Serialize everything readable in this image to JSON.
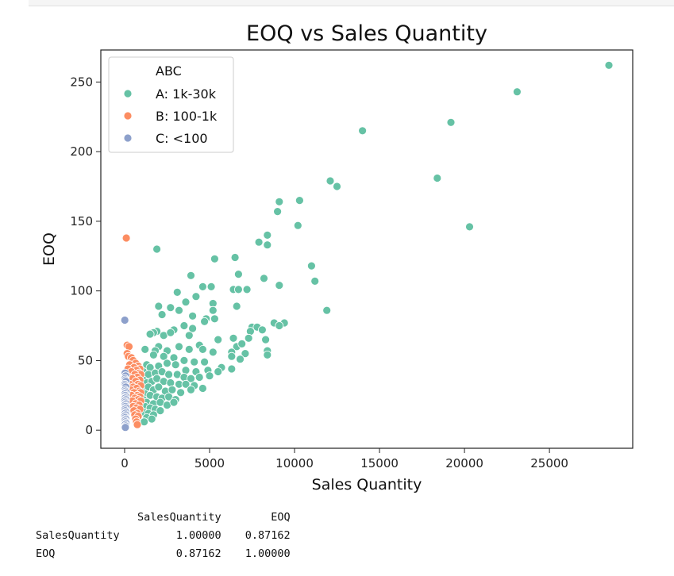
{
  "chart_data": {
    "type": "scatter",
    "title": "EOQ vs Sales Quantity",
    "xlabel": "Sales Quantity",
    "ylabel": "EOQ",
    "xlim": [
      -1400,
      29900
    ],
    "ylim": [
      -13,
      273
    ],
    "xticks": [
      0,
      5000,
      10000,
      15000,
      20000,
      25000
    ],
    "yticks": [
      0,
      50,
      100,
      150,
      200,
      250
    ],
    "grid": false,
    "legend": {
      "title": "ABC",
      "placement": "top-left"
    },
    "series": [
      {
        "name": "A: 1k-30k",
        "color": "#66c2a5",
        "points": [
          [
            28500,
            262
          ],
          [
            23100,
            243
          ],
          [
            19200,
            221
          ],
          [
            14000,
            215
          ],
          [
            18400,
            181
          ],
          [
            12100,
            179
          ],
          [
            12500,
            175
          ],
          [
            20300,
            146
          ],
          [
            10300,
            165
          ],
          [
            9100,
            164
          ],
          [
            9000,
            157
          ],
          [
            10200,
            147
          ],
          [
            8400,
            140
          ],
          [
            7900,
            135
          ],
          [
            8400,
            133
          ],
          [
            1900,
            130
          ],
          [
            6500,
            124
          ],
          [
            5300,
            123
          ],
          [
            11000,
            118
          ],
          [
            3900,
            111
          ],
          [
            6700,
            112
          ],
          [
            8200,
            109
          ],
          [
            11200,
            107
          ],
          [
            9100,
            104
          ],
          [
            4600,
            103
          ],
          [
            5100,
            103
          ],
          [
            6400,
            101
          ],
          [
            6700,
            101
          ],
          [
            7200,
            101
          ],
          [
            3100,
            99
          ],
          [
            4200,
            96
          ],
          [
            11900,
            86
          ],
          [
            5200,
            91
          ],
          [
            3600,
            92
          ],
          [
            2000,
            89
          ],
          [
            2700,
            88
          ],
          [
            5200,
            86
          ],
          [
            6600,
            89
          ],
          [
            3200,
            86
          ],
          [
            2200,
            83
          ],
          [
            5300,
            80
          ],
          [
            4000,
            82
          ],
          [
            4800,
            80
          ],
          [
            4700,
            78
          ],
          [
            8800,
            77
          ],
          [
            9400,
            77
          ],
          [
            9100,
            75
          ],
          [
            7500,
            74
          ],
          [
            7800,
            74
          ],
          [
            7400,
            71
          ],
          [
            8100,
            72
          ],
          [
            3500,
            75
          ],
          [
            4000,
            73
          ],
          [
            2900,
            72
          ],
          [
            1900,
            71
          ],
          [
            1700,
            70
          ],
          [
            1500,
            69
          ],
          [
            2300,
            68
          ],
          [
            2700,
            70
          ],
          [
            3800,
            68
          ],
          [
            5500,
            65
          ],
          [
            8300,
            65
          ],
          [
            6400,
            66
          ],
          [
            7300,
            66
          ],
          [
            6600,
            60
          ],
          [
            6900,
            62
          ],
          [
            4400,
            61
          ],
          [
            3200,
            60
          ],
          [
            2000,
            60
          ],
          [
            1200,
            58
          ],
          [
            1800,
            57
          ],
          [
            2500,
            57
          ],
          [
            3800,
            58
          ],
          [
            4600,
            58
          ],
          [
            5200,
            56
          ],
          [
            6300,
            56
          ],
          [
            7100,
            55
          ],
          [
            8400,
            57
          ],
          [
            8400,
            54
          ],
          [
            6800,
            51
          ],
          [
            6300,
            53
          ],
          [
            1700,
            54
          ],
          [
            2300,
            53
          ],
          [
            2900,
            52
          ],
          [
            3500,
            50
          ],
          [
            4100,
            49
          ],
          [
            4700,
            49
          ],
          [
            5700,
            45
          ],
          [
            6300,
            44
          ],
          [
            1300,
            47
          ],
          [
            1500,
            45
          ],
          [
            2000,
            46
          ],
          [
            2500,
            48
          ],
          [
            3000,
            47
          ],
          [
            3600,
            43
          ],
          [
            4200,
            42
          ],
          [
            4900,
            43
          ],
          [
            5500,
            42
          ],
          [
            1100,
            42
          ],
          [
            1400,
            40
          ],
          [
            1800,
            41
          ],
          [
            2200,
            42
          ],
          [
            2600,
            40
          ],
          [
            3100,
            40
          ],
          [
            3500,
            38
          ],
          [
            3900,
            37
          ],
          [
            4400,
            38
          ],
          [
            5000,
            39
          ],
          [
            1100,
            36
          ],
          [
            1300,
            34
          ],
          [
            1600,
            35
          ],
          [
            1900,
            37
          ],
          [
            2300,
            35
          ],
          [
            2700,
            34
          ],
          [
            3200,
            33
          ],
          [
            3600,
            33
          ],
          [
            4100,
            32
          ],
          [
            1100,
            30
          ],
          [
            1400,
            31
          ],
          [
            1700,
            29
          ],
          [
            2000,
            31
          ],
          [
            2400,
            28
          ],
          [
            2800,
            29
          ],
          [
            3300,
            27
          ],
          [
            3900,
            29
          ],
          [
            4600,
            30
          ],
          [
            1200,
            26
          ],
          [
            1500,
            25
          ],
          [
            1900,
            24
          ],
          [
            2200,
            23
          ],
          [
            2600,
            24
          ],
          [
            3000,
            22
          ],
          [
            1100,
            22
          ],
          [
            1300,
            20
          ],
          [
            1700,
            19
          ],
          [
            2100,
            20
          ],
          [
            2500,
            18
          ],
          [
            2900,
            20
          ],
          [
            1200,
            17
          ],
          [
            1500,
            16
          ],
          [
            1800,
            15
          ],
          [
            2100,
            14
          ],
          [
            1100,
            13
          ],
          [
            1400,
            12
          ],
          [
            1700,
            11
          ],
          [
            1300,
            9
          ],
          [
            1600,
            8
          ],
          [
            1150,
            6
          ]
        ]
      },
      {
        "name": "B: 100-1k",
        "color": "#fc8d62",
        "points": [
          [
            100,
            138
          ],
          [
            150,
            61
          ],
          [
            260,
            60
          ],
          [
            150,
            55
          ],
          [
            220,
            53
          ],
          [
            400,
            52
          ],
          [
            500,
            50
          ],
          [
            650,
            48
          ],
          [
            800,
            46
          ],
          [
            900,
            44
          ],
          [
            300,
            47
          ],
          [
            550,
            45
          ],
          [
            700,
            43
          ],
          [
            850,
            41
          ],
          [
            950,
            40
          ],
          [
            200,
            44
          ],
          [
            400,
            42
          ],
          [
            600,
            40
          ],
          [
            750,
            38
          ],
          [
            900,
            36
          ],
          [
            250,
            38
          ],
          [
            450,
            37
          ],
          [
            650,
            35
          ],
          [
            800,
            33
          ],
          [
            950,
            32
          ],
          [
            300,
            33
          ],
          [
            500,
            31
          ],
          [
            700,
            30
          ],
          [
            850,
            28
          ],
          [
            950,
            27
          ],
          [
            350,
            29
          ],
          [
            550,
            27
          ],
          [
            750,
            25
          ],
          [
            900,
            24
          ],
          [
            400,
            25
          ],
          [
            600,
            23
          ],
          [
            800,
            22
          ],
          [
            950,
            21
          ],
          [
            450,
            21
          ],
          [
            650,
            19
          ],
          [
            850,
            18
          ],
          [
            500,
            17
          ],
          [
            700,
            16
          ],
          [
            900,
            15
          ],
          [
            550,
            14
          ],
          [
            750,
            12
          ],
          [
            600,
            11
          ],
          [
            800,
            10
          ],
          [
            650,
            8
          ],
          [
            700,
            6
          ],
          [
            750,
            4
          ]
        ]
      },
      {
        "name": "C: <100",
        "color": "#8da0cb",
        "points": [
          [
            10,
            79
          ],
          [
            30,
            41
          ],
          [
            60,
            39
          ],
          [
            20,
            37
          ],
          [
            50,
            36
          ],
          [
            80,
            35
          ],
          [
            15,
            33
          ],
          [
            45,
            32
          ],
          [
            70,
            31
          ],
          [
            30,
            29
          ],
          [
            60,
            28
          ],
          [
            85,
            27
          ],
          [
            20,
            26
          ],
          [
            50,
            25
          ],
          [
            75,
            24
          ],
          [
            35,
            23
          ],
          [
            65,
            22
          ],
          [
            10,
            21
          ],
          [
            40,
            20
          ],
          [
            70,
            19
          ],
          [
            25,
            18
          ],
          [
            55,
            17
          ],
          [
            80,
            16
          ],
          [
            15,
            15
          ],
          [
            45,
            14
          ],
          [
            75,
            13
          ],
          [
            30,
            12
          ],
          [
            60,
            11
          ],
          [
            10,
            10
          ],
          [
            40,
            9
          ],
          [
            70,
            8
          ],
          [
            20,
            7
          ],
          [
            50,
            6
          ],
          [
            80,
            5
          ],
          [
            30,
            4
          ],
          [
            60,
            3
          ],
          [
            15,
            2
          ],
          [
            45,
            2
          ]
        ]
      }
    ]
  },
  "correlation_table": {
    "columns": [
      "SalesQuantity",
      "EOQ"
    ],
    "rows": [
      {
        "label": "SalesQuantity",
        "values": [
          "1.00000",
          "0.87162"
        ]
      },
      {
        "label": "EOQ",
        "values": [
          "0.87162",
          "1.00000"
        ]
      }
    ]
  }
}
